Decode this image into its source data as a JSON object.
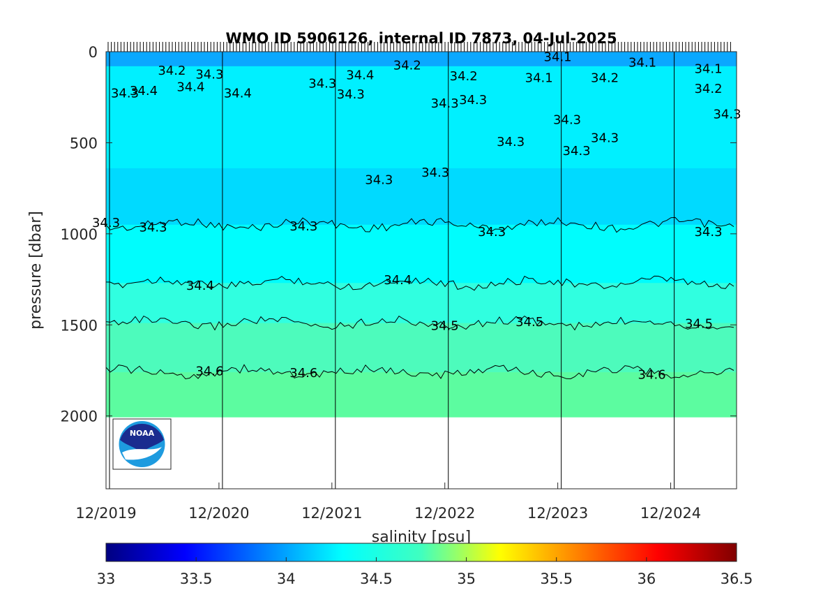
{
  "chart_data": {
    "type": "heatmap",
    "title": "WMO ID 5906126, internal ID 7873, 04-Jul-2025",
    "ylabel": "pressure [dbar]",
    "colorbar_label": "salinity [psu]",
    "x_tick_labels": [
      "12/2019",
      "12/2020",
      "12/2021",
      "12/2022",
      "12/2023",
      "12/2024"
    ],
    "x_range": [
      "2019-12",
      "2025-07"
    ],
    "y_ticks": [
      0,
      500,
      1000,
      1500,
      2000
    ],
    "y_tick_labels": [
      "0",
      "500",
      "1000",
      "1500",
      "2000"
    ],
    "ylim": [
      0,
      2400
    ],
    "y_reversed": true,
    "colorbar_ticks": [
      33,
      33.5,
      34,
      34.5,
      35,
      35.5,
      36,
      36.5
    ],
    "colorbar_tick_labels": [
      "33",
      "33.5",
      "34",
      "34.5",
      "35",
      "35.5",
      "36",
      "36.5"
    ],
    "colorbar_range": [
      33,
      36.5
    ],
    "colormap": "jet",
    "max_pressure_sampled": 2000,
    "layers": [
      {
        "pressure_top": 0,
        "pressure_bottom": 80,
        "salinity": 34.1,
        "color": "#0aa8ff"
      },
      {
        "pressure_top": 80,
        "pressure_bottom": 640,
        "salinity": 34.28,
        "color": "#00f0ff"
      },
      {
        "pressure_top": 640,
        "pressure_bottom": 950,
        "salinity": 34.22,
        "color": "#00daff"
      },
      {
        "pressure_top": 950,
        "pressure_bottom": 1270,
        "salinity": 34.35,
        "color": "#00fdfd"
      },
      {
        "pressure_top": 1270,
        "pressure_bottom": 1490,
        "salinity": 34.45,
        "color": "#30ffe0"
      },
      {
        "pressure_top": 1490,
        "pressure_bottom": 1760,
        "salinity": 34.55,
        "color": "#4dfbbc"
      },
      {
        "pressure_top": 1760,
        "pressure_bottom": 2000,
        "salinity": 34.62,
        "color": "#5cfca0"
      }
    ],
    "contours": [
      {
        "level": "34.3",
        "pressure": 950
      },
      {
        "level": "34.4",
        "pressure": 1270
      },
      {
        "level": "34.5",
        "pressure": 1490
      },
      {
        "level": "34.6",
        "pressure": 1760
      }
    ],
    "contour_labels": [
      {
        "text": "34.3",
        "x_date": "2019-12",
        "pressure": 935
      },
      {
        "text": "34.3",
        "x_date": "2020-05",
        "pressure": 960
      },
      {
        "text": "34.3",
        "x_date": "2021-09",
        "pressure": 955
      },
      {
        "text": "34.3",
        "x_date": "2023-05",
        "pressure": 985
      },
      {
        "text": "34.3",
        "x_date": "2025-04",
        "pressure": 985
      },
      {
        "text": "34.4",
        "x_date": "2020-10",
        "pressure": 1280
      },
      {
        "text": "34.4",
        "x_date": "2022-07",
        "pressure": 1250
      },
      {
        "text": "34.5",
        "x_date": "2022-12",
        "pressure": 1500
      },
      {
        "text": "34.5",
        "x_date": "2023-09",
        "pressure": 1480
      },
      {
        "text": "34.5",
        "x_date": "2025-03",
        "pressure": 1490
      },
      {
        "text": "34.6",
        "x_date": "2020-11",
        "pressure": 1750
      },
      {
        "text": "34.6",
        "x_date": "2021-09",
        "pressure": 1760
      },
      {
        "text": "34.6",
        "x_date": "2024-10",
        "pressure": 1770
      },
      {
        "text": "34.3",
        "x_date": "2022-05",
        "pressure": 700
      },
      {
        "text": "34.3",
        "x_date": "2022-11",
        "pressure": 660
      },
      {
        "text": "34.3",
        "x_date": "2023-07",
        "pressure": 490
      },
      {
        "text": "34.3",
        "x_date": "2024-02",
        "pressure": 540
      },
      {
        "text": "34.3",
        "x_date": "2024-05",
        "pressure": 470
      },
      {
        "text": "34.3",
        "x_date": "2024-01",
        "pressure": 370
      },
      {
        "text": "34.3",
        "x_date": "2025-06",
        "pressure": 340
      },
      {
        "text": "34.2",
        "x_date": "2024-05",
        "pressure": 140
      },
      {
        "text": "34.2",
        "x_date": "2025-04",
        "pressure": 200
      },
      {
        "text": "34.1",
        "x_date": "2024-09",
        "pressure": 55
      },
      {
        "text": "34.1",
        "x_date": "2025-04",
        "pressure": 90
      },
      {
        "text": "34.1",
        "x_date": "2023-12",
        "pressure": 25
      },
      {
        "text": "34.1",
        "x_date": "2023-10",
        "pressure": 140
      },
      {
        "text": "34.2",
        "x_date": "2023-02",
        "pressure": 130
      },
      {
        "text": "34.3",
        "x_date": "2022-12",
        "pressure": 280
      },
      {
        "text": "34.3",
        "x_date": "2023-03",
        "pressure": 260
      },
      {
        "text": "34.4",
        "x_date": "2021-02",
        "pressure": 225
      },
      {
        "text": "34.4",
        "x_date": "2020-09",
        "pressure": 190
      },
      {
        "text": "34.3",
        "x_date": "2020-11",
        "pressure": 120
      },
      {
        "text": "34.3",
        "x_date": "2021-11",
        "pressure": 170
      },
      {
        "text": "34.3",
        "x_date": "2022-02",
        "pressure": 230
      },
      {
        "text": "34.4",
        "x_date": "2020-04",
        "pressure": 210
      },
      {
        "text": "34.3",
        "x_date": "2020-02",
        "pressure": 225
      },
      {
        "text": "34.2",
        "x_date": "2020-07",
        "pressure": 100
      },
      {
        "text": "34.4",
        "x_date": "2022-03",
        "pressure": 125
      },
      {
        "text": "34.2",
        "x_date": "2022-08",
        "pressure": 70
      }
    ]
  }
}
